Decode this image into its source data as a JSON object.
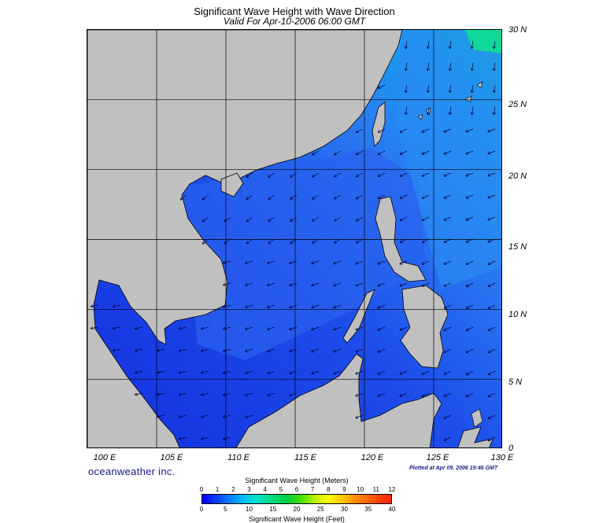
{
  "header": {
    "title": "Significant Wave Height with Wave Direction",
    "subtitle": "Valid For Apr-10-2006 06:00 GMT"
  },
  "map": {
    "lat_labels": [
      "30 N",
      "25 N",
      "20 N",
      "15 N",
      "10 N",
      "5 N",
      "0"
    ],
    "lon_labels": [
      "100 E",
      "105 E",
      "110 E",
      "115 E",
      "120 E",
      "125 E",
      "130 E"
    ],
    "extent": {
      "lon_min": 100,
      "lon_max": 130,
      "lat_min": 0,
      "lat_max": 30
    }
  },
  "footer": {
    "brand": "oceanweather inc.",
    "plotted": "Plotted at Apr 09, 2006 19:46 GMT"
  },
  "colorbar": {
    "title_top": "Significant Wave Height (Meters)",
    "title_bottom": "Significant Wave Height (Feet)",
    "meters": [
      "0",
      "1",
      "2",
      "3",
      "4",
      "5",
      "6",
      "7",
      "8",
      "9",
      "10",
      "11",
      "12"
    ],
    "feet": [
      "0",
      "5",
      "10",
      "15",
      "20",
      "25",
      "30",
      "35",
      "40"
    ]
  },
  "colors": {
    "land": "#c0c0c0",
    "sea_low": "#1b42e6",
    "sea_mid": "#2b74f0",
    "sea_high": "#00c8a8",
    "arrow": "#000033"
  }
}
